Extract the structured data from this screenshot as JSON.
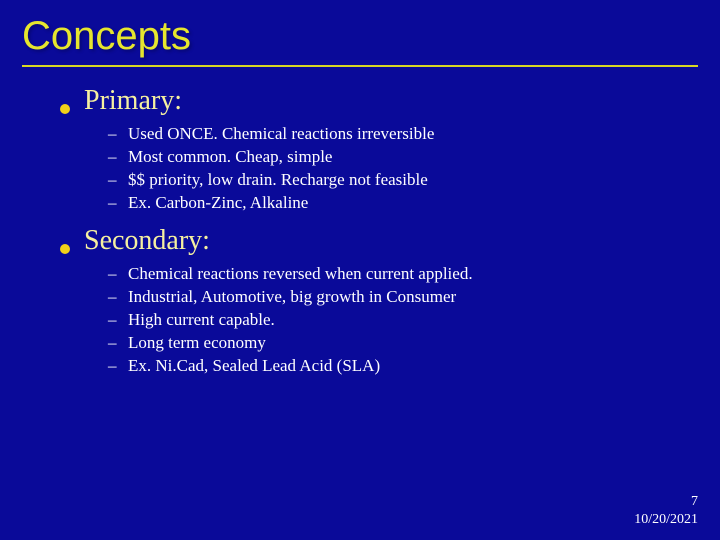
{
  "colors": {
    "background": "#0a0a99",
    "title": "#e6e62e",
    "underline": "#d8d824",
    "bullet": "#f2d11a",
    "top_text": "#f5f0a0",
    "sub_text": "#ffffff",
    "footer": "#ffffff"
  },
  "title": "Concepts",
  "sections": [
    {
      "label": "Primary:",
      "items": [
        "Used ONCE. Chemical reactions irreversible",
        "Most common. Cheap, simple",
        "$$ priority, low drain. Recharge not feasible",
        "Ex. Carbon-Zinc, Alkaline"
      ]
    },
    {
      "label": "Secondary:",
      "items": [
        "Chemical reactions reversed when current applied.",
        "Industrial, Automotive, big growth in Consumer",
        "High current capable.",
        "Long term economy",
        "Ex. Ni.Cad, Sealed Lead Acid (SLA)"
      ]
    }
  ],
  "footer": {
    "page": "7",
    "date": "10/20/2021"
  }
}
